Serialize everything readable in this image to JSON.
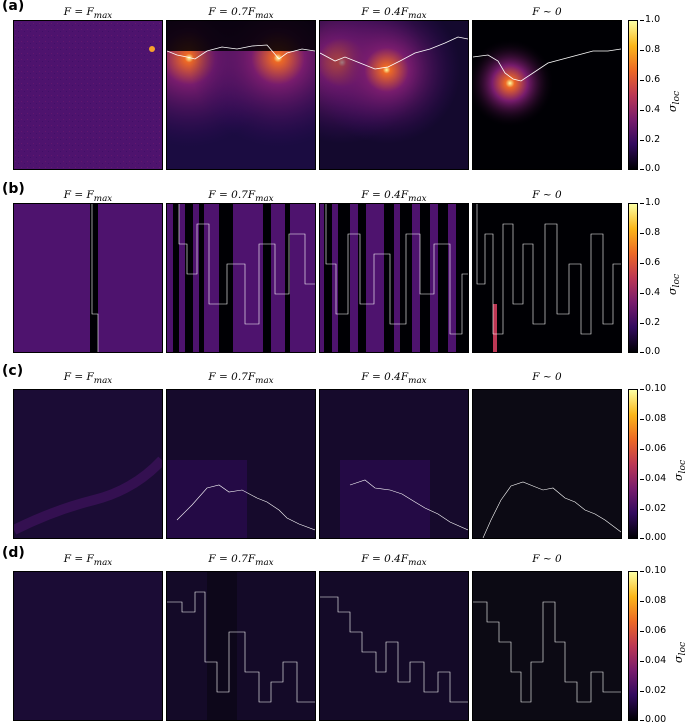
{
  "panel_titles": {
    "t1": "F = F",
    "t1_sub": "max",
    "t2": "F = 0.7F",
    "t2_sub": "max",
    "t3": "F = 0.4F",
    "t3_sub": "max",
    "t4": "F ~ 0"
  },
  "rows": [
    {
      "label": "(a)",
      "cbar_ticks": [
        "1.0",
        "0.8",
        "0.6",
        "0.4",
        "0.2",
        "0.0"
      ]
    },
    {
      "label": "(b)",
      "cbar_ticks": [
        "1.0",
        "0.8",
        "0.6",
        "0.4",
        "0.2",
        "0.0"
      ]
    },
    {
      "label": "(c)",
      "cbar_ticks": [
        "0.10",
        "0.08",
        "0.06",
        "0.04",
        "0.02",
        "0.00"
      ]
    },
    {
      "label": "(d)",
      "cbar_ticks": [
        "0.10",
        "0.08",
        "0.06",
        "0.04",
        "0.02",
        "0.00"
      ]
    }
  ],
  "colorbar_label": "σ",
  "colorbar_label_sub": "loc",
  "colormap": [
    "#000004",
    "#320a5e",
    "#781c6d",
    "#bc3754",
    "#ed6925",
    "#fbb61a",
    "#fcffa4"
  ]
}
